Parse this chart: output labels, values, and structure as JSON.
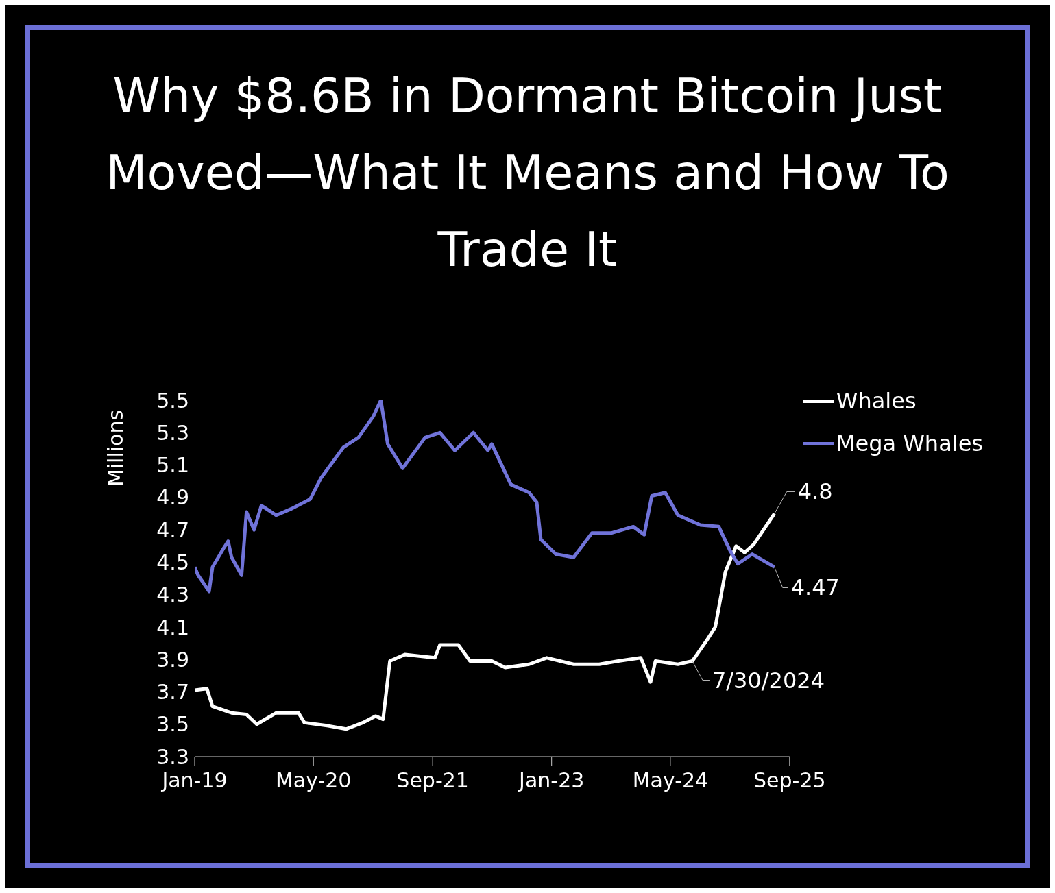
{
  "chart_data": {
    "type": "line",
    "title": "Why $8.6B in Dormant Bitcoin Just Moved—What It Means and How To Trade It",
    "ylabel": "Millions",
    "series": [
      {
        "name": "Whales",
        "color": "#ffffff",
        "x": [
          "2019-01-01",
          "2019-02-20",
          "2019-03-15",
          "2019-06-01",
          "2019-08-01",
          "2019-09-12",
          "2019-12-01",
          "2020-03-01",
          "2020-03-25",
          "2020-07-01",
          "2020-09-12",
          "2020-11-20",
          "2021-01-10",
          "2021-02-10",
          "2021-03-10",
          "2021-05-10",
          "2021-09-10",
          "2021-10-01",
          "2021-12-15",
          "2022-02-01",
          "2022-05-01",
          "2022-06-25",
          "2022-10-01",
          "2022-12-12",
          "2023-04-01",
          "2023-07-15",
          "2023-10-01",
          "2024-01-01",
          "2024-02-10",
          "2024-03-01",
          "2024-06-01",
          "2024-07-30",
          "2024-09-28",
          "2024-11-01",
          "2024-12-12",
          "2025-01-25",
          "2025-03-01",
          "2025-04-07",
          "2025-07-01"
        ],
        "values": [
          3.71,
          3.72,
          3.61,
          3.57,
          3.56,
          3.5,
          3.57,
          3.57,
          3.51,
          3.49,
          3.47,
          3.51,
          3.55,
          3.53,
          3.89,
          3.93,
          3.91,
          3.99,
          3.99,
          3.89,
          3.89,
          3.85,
          3.87,
          3.91,
          3.87,
          3.87,
          3.89,
          3.91,
          3.76,
          3.89,
          3.87,
          3.89,
          4.02,
          4.1,
          4.44,
          4.6,
          4.56,
          4.61,
          4.8
        ]
      },
      {
        "name": "Mega Whales",
        "color": "#7073d9",
        "x": [
          "2019-01-01",
          "2019-01-15",
          "2019-03-01",
          "2019-03-15",
          "2019-05-01",
          "2019-05-18",
          "2019-06-01",
          "2019-07-12",
          "2019-08-01",
          "2019-09-01",
          "2019-10-01",
          "2019-12-01",
          "2020-02-01",
          "2020-04-18",
          "2020-06-01",
          "2020-09-01",
          "2020-11-01",
          "2021-01-01",
          "2021-02-01",
          "2021-03-01",
          "2021-05-01",
          "2021-08-01",
          "2021-10-01",
          "2021-12-01",
          "2022-02-15",
          "2022-04-15",
          "2022-05-01",
          "2022-07-18",
          "2022-10-01",
          "2022-11-01",
          "2022-11-18",
          "2023-01-18",
          "2023-04-01",
          "2023-06-15",
          "2023-09-01",
          "2023-12-01",
          "2024-01-15",
          "2024-02-15",
          "2024-04-10",
          "2024-06-01",
          "2024-09-01",
          "2024-11-15",
          "2025-01-01",
          "2025-02-01",
          "2025-04-01",
          "2025-07-01"
        ],
        "values": [
          4.47,
          4.42,
          4.32,
          4.47,
          4.59,
          4.63,
          4.53,
          4.42,
          4.81,
          4.7,
          4.85,
          4.79,
          4.83,
          4.89,
          5.02,
          5.21,
          5.27,
          5.4,
          5.5,
          5.23,
          5.08,
          5.27,
          5.3,
          5.19,
          5.3,
          5.19,
          5.23,
          4.98,
          4.93,
          4.87,
          4.64,
          4.55,
          4.53,
          4.68,
          4.68,
          4.72,
          4.67,
          4.91,
          4.93,
          4.79,
          4.73,
          4.72,
          4.57,
          4.49,
          4.55,
          4.47
        ]
      }
    ],
    "xlim": [
      "2019-01-01",
      "2025-09-01"
    ],
    "xticks": [
      {
        "value": "2019-01-01",
        "label": "Jan-19"
      },
      {
        "value": "2020-05-01",
        "label": "May-20"
      },
      {
        "value": "2021-09-01",
        "label": "Sep-21"
      },
      {
        "value": "2023-01-01",
        "label": "Jan-23"
      },
      {
        "value": "2024-05-01",
        "label": "May-24"
      },
      {
        "value": "2025-09-01",
        "label": "Sep-25"
      }
    ],
    "ylim": [
      3.3,
      5.5
    ],
    "yticks": [
      3.3,
      3.5,
      3.7,
      3.9,
      4.1,
      4.3,
      4.5,
      4.7,
      4.9,
      5.1,
      5.3,
      5.5
    ],
    "annotations": [
      {
        "text": "4.8",
        "x": "2025-07-01",
        "y": 4.8
      },
      {
        "text": "4.47",
        "x": "2025-07-01",
        "y": 4.47
      },
      {
        "text": "7/30/2024",
        "x": "2024-07-30",
        "y": 3.89
      }
    ],
    "legend": "top right",
    "grid": false,
    "marker": "none",
    "line_style": "solid"
  }
}
